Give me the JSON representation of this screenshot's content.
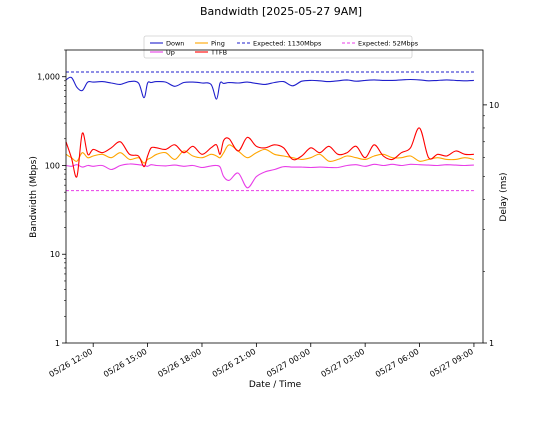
{
  "chart_data": {
    "type": "line",
    "title": "Bandwidth [2025-05-27 9AM]",
    "xlabel": "Date / Time",
    "ylabel_left": "Bandwidth (Mbps)",
    "ylabel_right": "Delay (ms)",
    "x_ticks": [
      "05/26 12:00",
      "05/26 15:00",
      "05/26 18:00",
      "05/26 21:00",
      "05/27 00:00",
      "05/27 03:00",
      "05/27 06:00",
      "05/27 09:00"
    ],
    "x_range_hours": [
      -1.5,
      21.5
    ],
    "y_left": {
      "scale": "log",
      "range": [
        1,
        2000
      ],
      "ticks": [
        "1",
        "10",
        "100",
        "1,000"
      ]
    },
    "y_right": {
      "scale": "log",
      "range": [
        1,
        17
      ],
      "ticks": [
        "1",
        "10"
      ]
    },
    "grid": false,
    "legend_position": "top",
    "legend": [
      {
        "label": "Down",
        "color": "#1f1fcc",
        "style": "solid"
      },
      {
        "label": "Up",
        "color": "#e83ee8",
        "style": "solid"
      },
      {
        "label": "Ping",
        "color": "#ffa500",
        "style": "solid"
      },
      {
        "label": "TTFB",
        "color": "#ff0000",
        "style": "solid"
      },
      {
        "label": "Expected: 1130Mbps",
        "color": "#1f1fcc",
        "style": "dashed"
      },
      {
        "label": "Expected: 52Mbps",
        "color": "#e83ee8",
        "style": "dashed"
      }
    ],
    "x_hours": [
      -1.5,
      -1.2,
      -0.9,
      -0.6,
      -0.3,
      0,
      0.5,
      1,
      1.5,
      2,
      2.5,
      2.8,
      3,
      3.2,
      3.5,
      4,
      4.5,
      5,
      5.5,
      6,
      6.5,
      6.8,
      7,
      7.2,
      7.5,
      8,
      8.5,
      9,
      9.5,
      10,
      10.5,
      11,
      11.5,
      12,
      12.5,
      13,
      13.5,
      14,
      14.5,
      15,
      15.5,
      16,
      16.5,
      17,
      17.5,
      18,
      18.5,
      19,
      19.5,
      20,
      20.5,
      21
    ],
    "series": [
      {
        "name": "Down",
        "axis": "left",
        "color": "#1f1fcc",
        "values": [
          920,
          980,
          760,
          700,
          870,
          870,
          880,
          850,
          820,
          880,
          850,
          580,
          850,
          860,
          880,
          870,
          780,
          860,
          870,
          850,
          820,
          560,
          850,
          840,
          860,
          850,
          870,
          840,
          820,
          860,
          880,
          790,
          890,
          910,
          900,
          880,
          900,
          920,
          890,
          910,
          920,
          910,
          910,
          920,
          930,
          920,
          900,
          910,
          920,
          910,
          900,
          910
        ]
      },
      {
        "name": "Up",
        "axis": "left",
        "color": "#e83ee8",
        "values": [
          100,
          98,
          102,
          96,
          100,
          98,
          100,
          90,
          100,
          104,
          102,
          100,
          98,
          102,
          100,
          99,
          101,
          98,
          100,
          95,
          99,
          100,
          96,
          75,
          68,
          82,
          56,
          75,
          85,
          90,
          97,
          96,
          96,
          95,
          96,
          95,
          95,
          100,
          102,
          98,
          103,
          100,
          103,
          100,
          103,
          102,
          101,
          100,
          102,
          101,
          100,
          101
        ]
      },
      {
        "name": "Ping",
        "axis": "right",
        "color": "#ffa500",
        "values": [
          6.2,
          6.0,
          5.8,
          6.3,
          6.0,
          6.1,
          6.2,
          6.0,
          6.3,
          5.9,
          6.0,
          5.7,
          5.9,
          6.0,
          6.2,
          6.3,
          5.9,
          6.4,
          6.1,
          6.0,
          6.2,
          6.1,
          6.0,
          6.3,
          6.8,
          6.4,
          6.0,
          6.3,
          6.5,
          6.2,
          6.1,
          6.0,
          5.9,
          6.0,
          6.2,
          5.8,
          5.9,
          6.1,
          6.0,
          5.9,
          6.1,
          6.2,
          6.0,
          6.0,
          6.1,
          5.8,
          5.9,
          6.0,
          5.9,
          5.9,
          6.0,
          5.9
        ]
      },
      {
        "name": "TTFB",
        "axis": "right",
        "color": "#ff0000",
        "values": [
          7.0,
          6.0,
          5.0,
          7.6,
          6.2,
          6.5,
          6.3,
          6.6,
          7.0,
          6.2,
          6.1,
          5.5,
          6.1,
          6.6,
          6.6,
          6.5,
          6.8,
          6.3,
          6.7,
          6.2,
          6.6,
          6.8,
          6.2,
          7.1,
          7.2,
          6.4,
          7.3,
          6.7,
          6.6,
          6.8,
          6.6,
          5.9,
          6.1,
          6.6,
          6.3,
          6.7,
          6.2,
          6.3,
          6.7,
          6.0,
          6.8,
          6.1,
          5.9,
          6.3,
          6.6,
          8.0,
          6.0,
          6.2,
          6.1,
          6.4,
          6.2,
          6.2
        ]
      }
    ],
    "reference_lines": [
      {
        "name": "Expected: 1130Mbps",
        "axis": "left",
        "value": 1130,
        "color": "#1f1fcc"
      },
      {
        "name": "Expected: 52Mbps",
        "axis": "left",
        "value": 52,
        "color": "#e83ee8"
      }
    ]
  }
}
